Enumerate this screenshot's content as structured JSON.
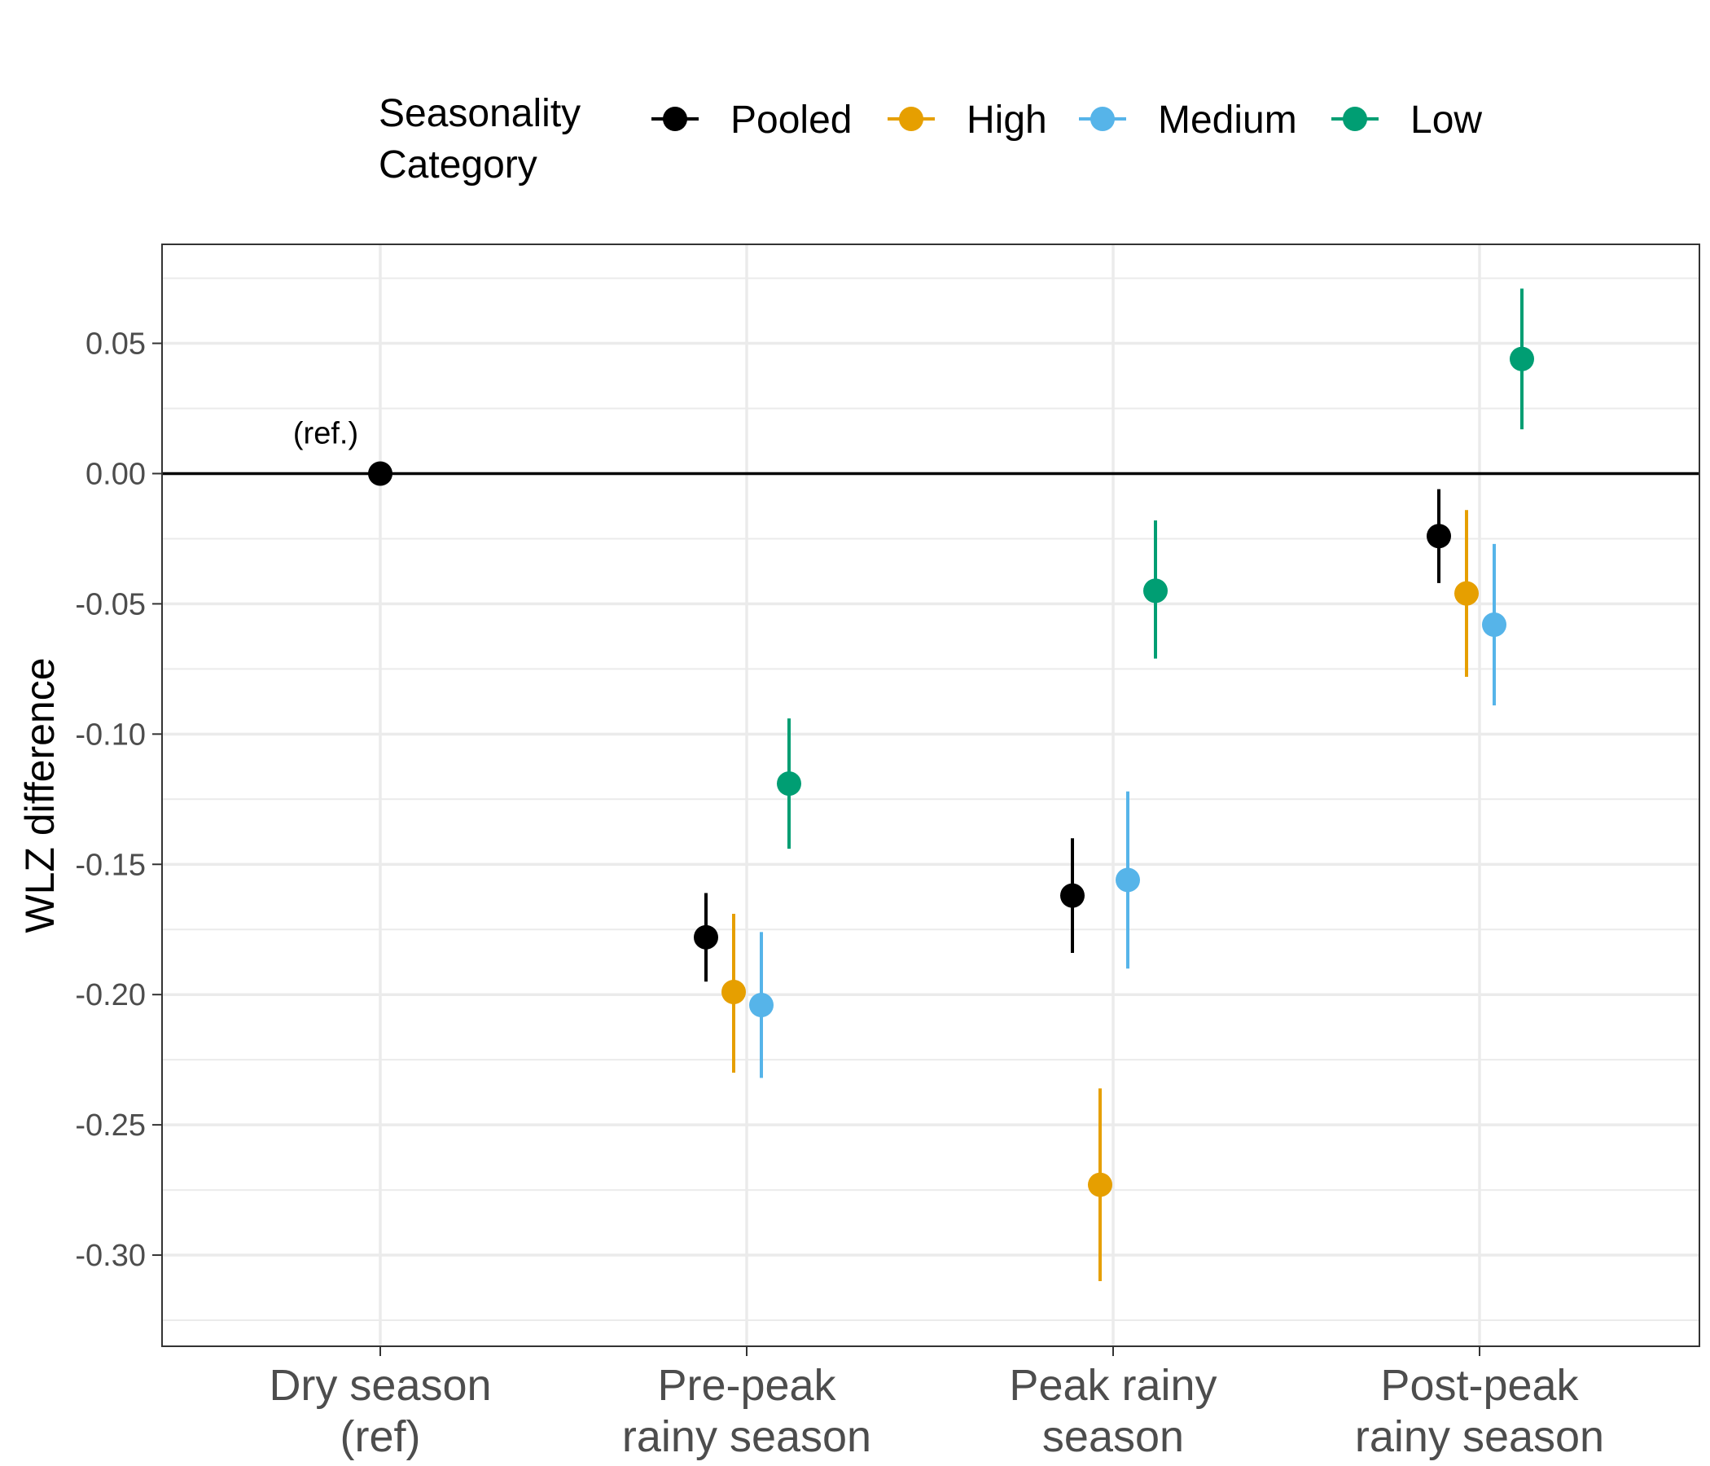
{
  "chart_data": {
    "type": "scatter",
    "xlabel": "",
    "ylabel": "WLZ difference",
    "ylim": [
      -0.335,
      0.088
    ],
    "y_ticks": [
      "0.05",
      "0.00",
      "-0.05",
      "-0.10",
      "-0.15",
      "-0.20",
      "-0.25",
      "-0.30"
    ],
    "y_tick_values": [
      0.05,
      0.0,
      -0.05,
      -0.1,
      -0.15,
      -0.2,
      -0.25,
      -0.3
    ],
    "categories": [
      [
        "Dry season",
        "(ref)"
      ],
      [
        "Pre-peak",
        "rainy season"
      ],
      [
        "Peak rainy",
        "season"
      ],
      [
        "Post-peak",
        "rainy season"
      ]
    ],
    "legend": {
      "title": [
        "Seasonality",
        "Category"
      ],
      "position": "top"
    },
    "reference_line": 0,
    "annotation": {
      "text": "(ref.)",
      "category_index": 0,
      "y": 0
    },
    "grid": true,
    "series": [
      {
        "name": "Pooled",
        "color": "#000000",
        "points": [
          {
            "cat": 0,
            "y": 0.0,
            "lo": null,
            "hi": null
          },
          {
            "cat": 1,
            "y": -0.178,
            "lo": -0.195,
            "hi": -0.161
          },
          {
            "cat": 2,
            "y": -0.162,
            "lo": -0.184,
            "hi": -0.14
          },
          {
            "cat": 3,
            "y": -0.024,
            "lo": -0.042,
            "hi": -0.006
          }
        ]
      },
      {
        "name": "High",
        "color": "#E69F00",
        "points": [
          {
            "cat": 1,
            "y": -0.199,
            "lo": -0.23,
            "hi": -0.169
          },
          {
            "cat": 2,
            "y": -0.273,
            "lo": -0.31,
            "hi": -0.236
          },
          {
            "cat": 3,
            "y": -0.046,
            "lo": -0.078,
            "hi": -0.014
          }
        ]
      },
      {
        "name": "Medium",
        "color": "#56B4E9",
        "points": [
          {
            "cat": 1,
            "y": -0.204,
            "lo": -0.232,
            "hi": -0.176
          },
          {
            "cat": 2,
            "y": -0.156,
            "lo": -0.19,
            "hi": -0.122
          },
          {
            "cat": 3,
            "y": -0.058,
            "lo": -0.089,
            "hi": -0.027
          }
        ]
      },
      {
        "name": "Low",
        "color": "#009E73",
        "points": [
          {
            "cat": 1,
            "y": -0.119,
            "lo": -0.144,
            "hi": -0.094
          },
          {
            "cat": 2,
            "y": -0.045,
            "lo": -0.071,
            "hi": -0.018
          },
          {
            "cat": 3,
            "y": 0.044,
            "lo": 0.017,
            "hi": 0.071
          }
        ]
      }
    ]
  }
}
